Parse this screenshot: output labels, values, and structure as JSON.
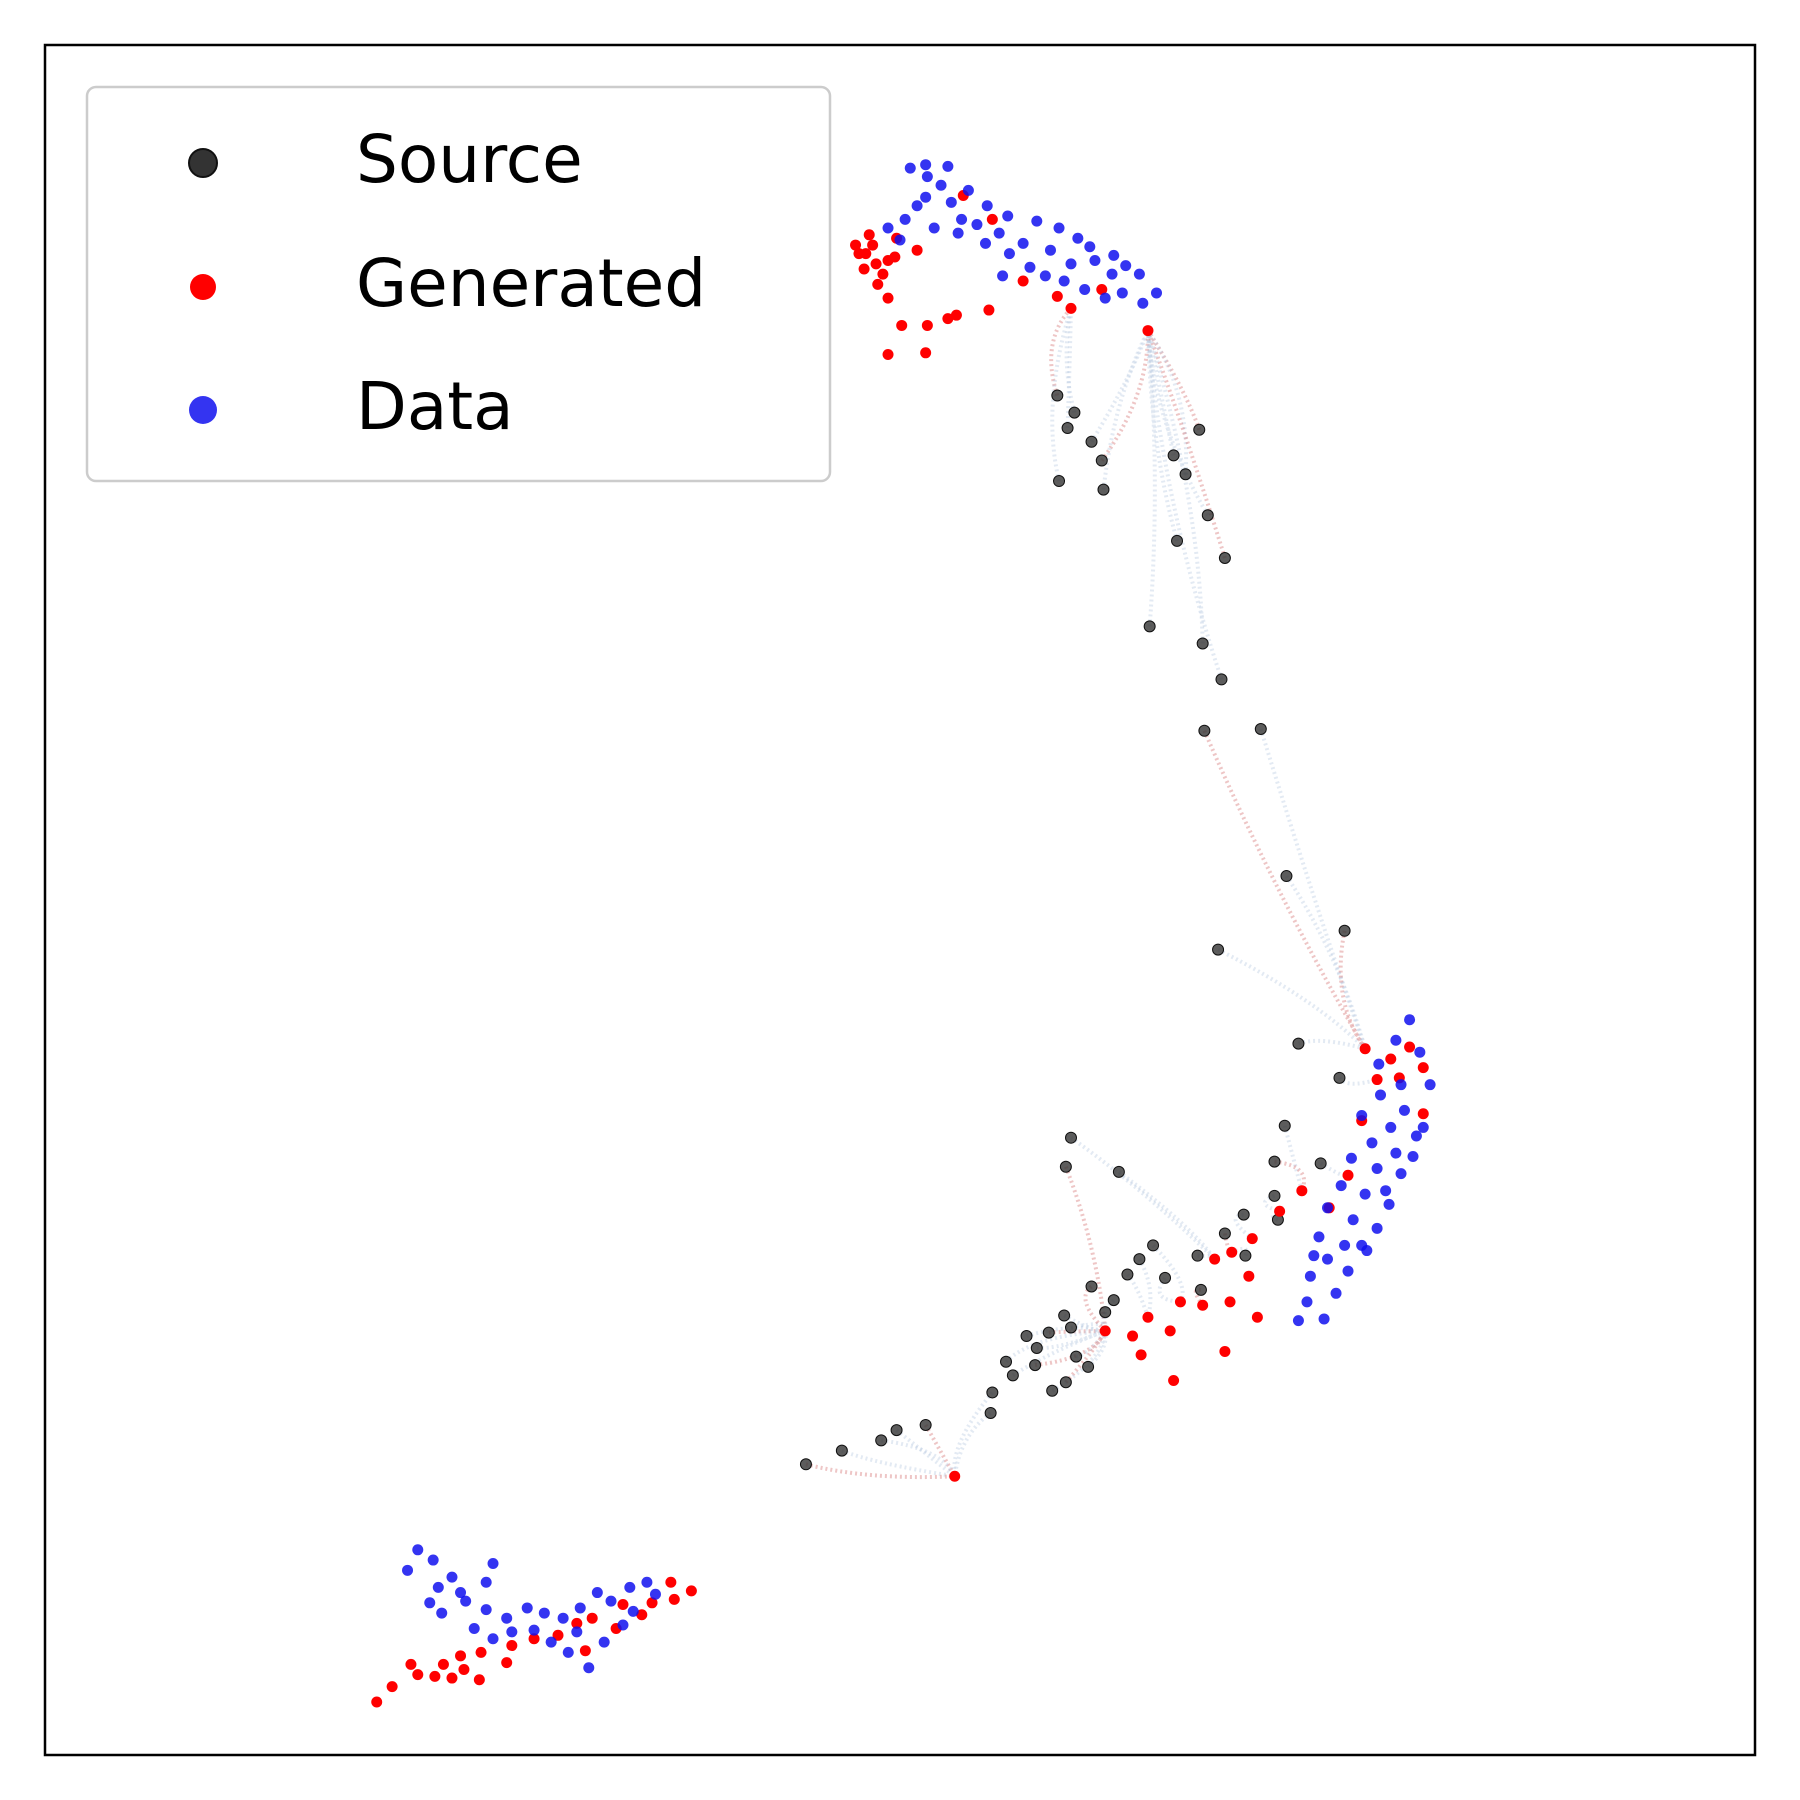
{
  "chart_data": {
    "type": "scatter",
    "title": "",
    "xlabel": "",
    "ylabel": "",
    "axes_ticks": "none",
    "grid": false,
    "legend_position": "top-left",
    "xlim": [
      0,
      1
    ],
    "ylim": [
      0,
      1
    ],
    "colors": {
      "source": "#333333",
      "generated": "#ff0000",
      "data": "#1010ee",
      "trajectory_source": "#b0c4de",
      "trajectory_generated": "#cd5c5c"
    },
    "series": [
      {
        "name": "Source",
        "color": "#333333",
        "points": [
          [
            0.592,
            0.795
          ],
          [
            0.602,
            0.785
          ],
          [
            0.598,
            0.776
          ],
          [
            0.612,
            0.768
          ],
          [
            0.618,
            0.757
          ],
          [
            0.593,
            0.745
          ],
          [
            0.619,
            0.74
          ],
          [
            0.66,
            0.76
          ],
          [
            0.675,
            0.775
          ],
          [
            0.667,
            0.749
          ],
          [
            0.68,
            0.725
          ],
          [
            0.662,
            0.71
          ],
          [
            0.69,
            0.7
          ],
          [
            0.646,
            0.66
          ],
          [
            0.677,
            0.65
          ],
          [
            0.688,
            0.629
          ],
          [
            0.678,
            0.599
          ],
          [
            0.711,
            0.6
          ],
          [
            0.726,
            0.514
          ],
          [
            0.686,
            0.471
          ],
          [
            0.76,
            0.482
          ],
          [
            0.733,
            0.416
          ],
          [
            0.725,
            0.368
          ],
          [
            0.746,
            0.346
          ],
          [
            0.719,
            0.347
          ],
          [
            0.719,
            0.327
          ],
          [
            0.757,
            0.396
          ],
          [
            0.6,
            0.361
          ],
          [
            0.597,
            0.344
          ],
          [
            0.628,
            0.341
          ],
          [
            0.701,
            0.316
          ],
          [
            0.721,
            0.313
          ],
          [
            0.69,
            0.305
          ],
          [
            0.702,
            0.292
          ],
          [
            0.674,
            0.292
          ],
          [
            0.655,
            0.279
          ],
          [
            0.676,
            0.272
          ],
          [
            0.62,
            0.259
          ],
          [
            0.596,
            0.257
          ],
          [
            0.6,
            0.25
          ],
          [
            0.587,
            0.247
          ],
          [
            0.58,
            0.238
          ],
          [
            0.574,
            0.245
          ],
          [
            0.61,
            0.227
          ],
          [
            0.579,
            0.228
          ],
          [
            0.562,
            0.23
          ],
          [
            0.566,
            0.222
          ],
          [
            0.603,
            0.233
          ],
          [
            0.597,
            0.218
          ],
          [
            0.589,
            0.213
          ],
          [
            0.554,
            0.212
          ],
          [
            0.553,
            0.2
          ],
          [
            0.515,
            0.193
          ],
          [
            0.498,
            0.19
          ],
          [
            0.489,
            0.184
          ],
          [
            0.466,
            0.178
          ],
          [
            0.445,
            0.17
          ],
          [
            0.633,
            0.281
          ],
          [
            0.64,
            0.29
          ],
          [
            0.648,
            0.298
          ],
          [
            0.612,
            0.274
          ],
          [
            0.625,
            0.266
          ]
        ]
      },
      {
        "name": "Generated",
        "color": "#ff0000",
        "points": [
          [
            0.48,
            0.878
          ],
          [
            0.486,
            0.872
          ],
          [
            0.49,
            0.866
          ],
          [
            0.484,
            0.883
          ],
          [
            0.474,
            0.883
          ],
          [
            0.493,
            0.874
          ],
          [
            0.487,
            0.86
          ],
          [
            0.479,
            0.869
          ],
          [
            0.497,
            0.876
          ],
          [
            0.482,
            0.889
          ],
          [
            0.476,
            0.878
          ],
          [
            0.498,
            0.887
          ],
          [
            0.51,
            0.88
          ],
          [
            0.493,
            0.852
          ],
          [
            0.501,
            0.836
          ],
          [
            0.516,
            0.836
          ],
          [
            0.528,
            0.84
          ],
          [
            0.533,
            0.842
          ],
          [
            0.552,
            0.845
          ],
          [
            0.493,
            0.819
          ],
          [
            0.515,
            0.82
          ],
          [
            0.537,
            0.912
          ],
          [
            0.554,
            0.898
          ],
          [
            0.6,
            0.846
          ],
          [
            0.645,
            0.833
          ],
          [
            0.572,
            0.862
          ],
          [
            0.592,
            0.853
          ],
          [
            0.618,
            0.857
          ],
          [
            0.798,
            0.414
          ],
          [
            0.787,
            0.407
          ],
          [
            0.772,
            0.413
          ],
          [
            0.806,
            0.402
          ],
          [
            0.792,
            0.396
          ],
          [
            0.779,
            0.395
          ],
          [
            0.77,
            0.371
          ],
          [
            0.806,
            0.375
          ],
          [
            0.762,
            0.339
          ],
          [
            0.751,
            0.32
          ],
          [
            0.735,
            0.33
          ],
          [
            0.722,
            0.318
          ],
          [
            0.706,
            0.302
          ],
          [
            0.694,
            0.294
          ],
          [
            0.684,
            0.29
          ],
          [
            0.704,
            0.28
          ],
          [
            0.677,
            0.263
          ],
          [
            0.664,
            0.265
          ],
          [
            0.645,
            0.256
          ],
          [
            0.658,
            0.248
          ],
          [
            0.636,
            0.245
          ],
          [
            0.62,
            0.248
          ],
          [
            0.641,
            0.234
          ],
          [
            0.69,
            0.236
          ],
          [
            0.693,
            0.265
          ],
          [
            0.709,
            0.256
          ],
          [
            0.66,
            0.219
          ],
          [
            0.532,
            0.163
          ],
          [
            0.366,
            0.101
          ],
          [
            0.378,
            0.096
          ],
          [
            0.368,
            0.091
          ],
          [
            0.338,
            0.088
          ],
          [
            0.32,
            0.08
          ],
          [
            0.311,
            0.077
          ],
          [
            0.3,
            0.07
          ],
          [
            0.286,
            0.068
          ],
          [
            0.273,
            0.064
          ],
          [
            0.255,
            0.06
          ],
          [
            0.243,
            0.058
          ],
          [
            0.233,
            0.053
          ],
          [
            0.218,
            0.047
          ],
          [
            0.203,
            0.04
          ],
          [
            0.194,
            0.031
          ],
          [
            0.228,
            0.046
          ],
          [
            0.214,
            0.053
          ],
          [
            0.238,
            0.045
          ],
          [
            0.254,
            0.044
          ],
          [
            0.27,
            0.054
          ],
          [
            0.245,
            0.05
          ],
          [
            0.316,
            0.061
          ],
          [
            0.334,
            0.074
          ],
          [
            0.349,
            0.082
          ],
          [
            0.355,
            0.089
          ]
        ]
      },
      {
        "name": "Data",
        "color": "#1010ee",
        "points": [
          [
            0.516,
            0.923
          ],
          [
            0.506,
            0.928
          ],
          [
            0.524,
            0.918
          ],
          [
            0.53,
            0.908
          ],
          [
            0.51,
            0.906
          ],
          [
            0.503,
            0.898
          ],
          [
            0.52,
            0.893
          ],
          [
            0.54,
            0.915
          ],
          [
            0.551,
            0.906
          ],
          [
            0.563,
            0.9
          ],
          [
            0.545,
            0.895
          ],
          [
            0.558,
            0.89
          ],
          [
            0.572,
            0.884
          ],
          [
            0.58,
            0.897
          ],
          [
            0.593,
            0.893
          ],
          [
            0.604,
            0.887
          ],
          [
            0.614,
            0.874
          ],
          [
            0.624,
            0.866
          ],
          [
            0.632,
            0.871
          ],
          [
            0.64,
            0.866
          ],
          [
            0.6,
            0.872
          ],
          [
            0.588,
            0.88
          ],
          [
            0.576,
            0.87
          ],
          [
            0.564,
            0.878
          ],
          [
            0.55,
            0.884
          ],
          [
            0.534,
            0.89
          ],
          [
            0.56,
            0.865
          ],
          [
            0.608,
            0.857
          ],
          [
            0.62,
            0.852
          ],
          [
            0.63,
            0.855
          ],
          [
            0.515,
            0.911
          ],
          [
            0.493,
            0.893
          ],
          [
            0.5,
            0.886
          ],
          [
            0.528,
            0.929
          ],
          [
            0.515,
            0.93
          ],
          [
            0.536,
            0.898
          ],
          [
            0.585,
            0.865
          ],
          [
            0.596,
            0.862
          ],
          [
            0.642,
            0.849
          ],
          [
            0.65,
            0.855
          ],
          [
            0.625,
            0.877
          ],
          [
            0.611,
            0.882
          ],
          [
            0.798,
            0.43
          ],
          [
            0.79,
            0.418
          ],
          [
            0.804,
            0.411
          ],
          [
            0.78,
            0.404
          ],
          [
            0.793,
            0.392
          ],
          [
            0.81,
            0.392
          ],
          [
            0.781,
            0.386
          ],
          [
            0.795,
            0.377
          ],
          [
            0.77,
            0.374
          ],
          [
            0.787,
            0.367
          ],
          [
            0.802,
            0.362
          ],
          [
            0.776,
            0.358
          ],
          [
            0.79,
            0.352
          ],
          [
            0.764,
            0.349
          ],
          [
            0.779,
            0.343
          ],
          [
            0.793,
            0.34
          ],
          [
            0.758,
            0.333
          ],
          [
            0.772,
            0.328
          ],
          [
            0.786,
            0.322
          ],
          [
            0.75,
            0.32
          ],
          [
            0.765,
            0.313
          ],
          [
            0.779,
            0.308
          ],
          [
            0.745,
            0.303
          ],
          [
            0.76,
            0.298
          ],
          [
            0.773,
            0.295
          ],
          [
            0.75,
            0.29
          ],
          [
            0.762,
            0.283
          ],
          [
            0.74,
            0.28
          ],
          [
            0.755,
            0.27
          ],
          [
            0.738,
            0.265
          ],
          [
            0.748,
            0.255
          ],
          [
            0.733,
            0.254
          ],
          [
            0.806,
            0.367
          ],
          [
            0.8,
            0.35
          ],
          [
            0.784,
            0.33
          ],
          [
            0.77,
            0.298
          ],
          [
            0.742,
            0.292
          ],
          [
            0.218,
            0.12
          ],
          [
            0.227,
            0.114
          ],
          [
            0.238,
            0.104
          ],
          [
            0.212,
            0.108
          ],
          [
            0.23,
            0.098
          ],
          [
            0.243,
            0.095
          ],
          [
            0.258,
            0.101
          ],
          [
            0.262,
            0.112
          ],
          [
            0.246,
            0.09
          ],
          [
            0.258,
            0.085
          ],
          [
            0.27,
            0.08
          ],
          [
            0.282,
            0.086
          ],
          [
            0.292,
            0.083
          ],
          [
            0.303,
            0.08
          ],
          [
            0.313,
            0.086
          ],
          [
            0.323,
            0.095
          ],
          [
            0.331,
            0.09
          ],
          [
            0.342,
            0.098
          ],
          [
            0.311,
            0.072
          ],
          [
            0.296,
            0.066
          ],
          [
            0.306,
            0.06
          ],
          [
            0.327,
            0.066
          ],
          [
            0.338,
            0.076
          ],
          [
            0.344,
            0.084
          ],
          [
            0.286,
            0.073
          ],
          [
            0.273,
            0.072
          ],
          [
            0.262,
            0.068
          ],
          [
            0.251,
            0.074
          ],
          [
            0.232,
            0.083
          ],
          [
            0.225,
            0.089
          ],
          [
            0.352,
            0.101
          ],
          [
            0.357,
            0.094
          ],
          [
            0.318,
            0.051
          ]
        ]
      }
    ]
  }
}
